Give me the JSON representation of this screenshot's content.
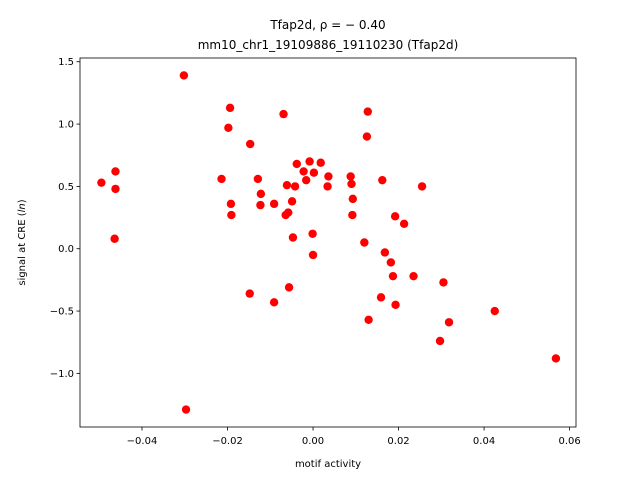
{
  "chart_data": {
    "type": "scatter",
    "title": "Tfap2d, ρ = − 0.40",
    "subtitle": "mm10_chr1_19109886_19110230 (Tfap2d)",
    "xlabel": "motif activity",
    "ylabel": "signal at CRE (",
    "ylabel_italic": "ln",
    "ylabel_close": ")",
    "xlim": [
      -0.0545,
      0.0615
    ],
    "ylim": [
      -1.43,
      1.53
    ],
    "grid": false,
    "marker_color": "#ff0000",
    "x_ticks": [
      {
        "value": -0.04,
        "label": "−0.04"
      },
      {
        "value": -0.02,
        "label": "−0.02"
      },
      {
        "value": 0.0,
        "label": "0.00"
      },
      {
        "value": 0.02,
        "label": "0.02"
      },
      {
        "value": 0.04,
        "label": "0.04"
      },
      {
        "value": 0.06,
        "label": "0.06"
      }
    ],
    "y_ticks": [
      {
        "value": -1.0,
        "label": "−1.0"
      },
      {
        "value": -0.5,
        "label": "−0.5"
      },
      {
        "value": 0.0,
        "label": "0.0"
      },
      {
        "value": 0.5,
        "label": "0.5"
      },
      {
        "value": 1.0,
        "label": "1.0"
      },
      {
        "value": 1.5,
        "label": "1.5"
      }
    ],
    "points": [
      {
        "x": -0.0495,
        "y": 0.53
      },
      {
        "x": -0.0462,
        "y": 0.62
      },
      {
        "x": -0.0462,
        "y": 0.48
      },
      {
        "x": -0.0464,
        "y": 0.08
      },
      {
        "x": -0.0302,
        "y": 1.39
      },
      {
        "x": -0.0297,
        "y": -1.29
      },
      {
        "x": -0.0214,
        "y": 0.56
      },
      {
        "x": -0.0194,
        "y": 1.13
      },
      {
        "x": -0.0198,
        "y": 0.97
      },
      {
        "x": -0.0192,
        "y": 0.36
      },
      {
        "x": -0.0191,
        "y": 0.27
      },
      {
        "x": -0.0147,
        "y": 0.84
      },
      {
        "x": -0.0148,
        "y": -0.36
      },
      {
        "x": -0.0129,
        "y": 0.56
      },
      {
        "x": -0.0122,
        "y": 0.44
      },
      {
        "x": -0.0123,
        "y": 0.35
      },
      {
        "x": -0.0091,
        "y": 0.36
      },
      {
        "x": -0.0091,
        "y": -0.43
      },
      {
        "x": -0.0069,
        "y": 1.08
      },
      {
        "x": -0.0061,
        "y": 0.51
      },
      {
        "x": -0.0064,
        "y": 0.27
      },
      {
        "x": -0.0058,
        "y": 0.29
      },
      {
        "x": -0.0056,
        "y": -0.31
      },
      {
        "x": -0.0049,
        "y": 0.38
      },
      {
        "x": -0.0047,
        "y": 0.09
      },
      {
        "x": -0.0042,
        "y": 0.5
      },
      {
        "x": -0.0038,
        "y": 0.68
      },
      {
        "x": -0.0022,
        "y": 0.62
      },
      {
        "x": -0.0016,
        "y": 0.55
      },
      {
        "x": -0.0008,
        "y": 0.7
      },
      {
        "x": 0.0002,
        "y": 0.61
      },
      {
        "x": -0.0001,
        "y": 0.12
      },
      {
        "x": 0.0,
        "y": -0.05
      },
      {
        "x": 0.0018,
        "y": 0.69
      },
      {
        "x": 0.0036,
        "y": 0.58
      },
      {
        "x": 0.0034,
        "y": 0.5
      },
      {
        "x": 0.0088,
        "y": 0.58
      },
      {
        "x": 0.009,
        "y": 0.52
      },
      {
        "x": 0.0093,
        "y": 0.4
      },
      {
        "x": 0.0092,
        "y": 0.27
      },
      {
        "x": 0.012,
        "y": 0.05
      },
      {
        "x": 0.0128,
        "y": 1.1
      },
      {
        "x": 0.0126,
        "y": 0.9
      },
      {
        "x": 0.013,
        "y": -0.57
      },
      {
        "x": 0.0162,
        "y": 0.55
      },
      {
        "x": 0.0159,
        "y": -0.39
      },
      {
        "x": 0.0168,
        "y": -0.03
      },
      {
        "x": 0.0182,
        "y": -0.11
      },
      {
        "x": 0.0187,
        "y": -0.22
      },
      {
        "x": 0.0192,
        "y": 0.26
      },
      {
        "x": 0.0193,
        "y": -0.45
      },
      {
        "x": 0.0213,
        "y": 0.2
      },
      {
        "x": 0.0235,
        "y": -0.22
      },
      {
        "x": 0.0255,
        "y": 0.5
      },
      {
        "x": 0.0297,
        "y": -0.74
      },
      {
        "x": 0.0305,
        "y": -0.27
      },
      {
        "x": 0.0318,
        "y": -0.59
      },
      {
        "x": 0.0425,
        "y": -0.5
      },
      {
        "x": 0.0568,
        "y": -0.88
      }
    ]
  }
}
